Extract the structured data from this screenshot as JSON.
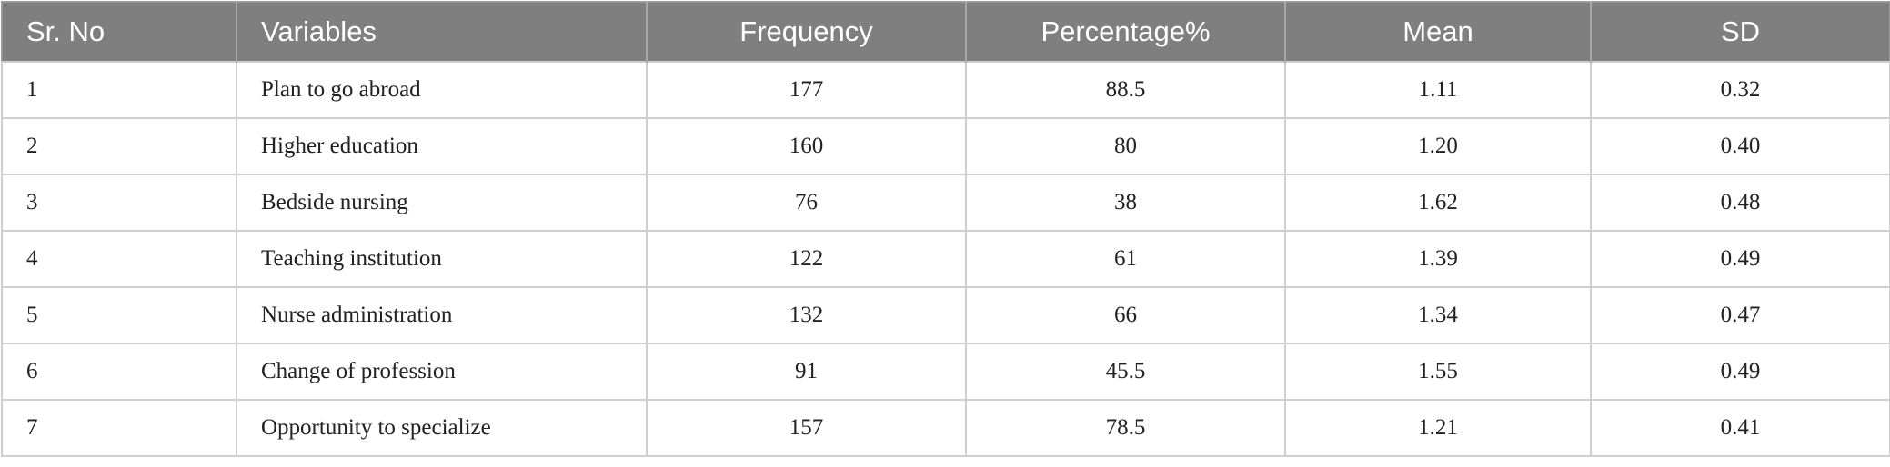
{
  "table": {
    "header": [
      "Sr. No",
      "Variables",
      "Frequency",
      "Percentage%",
      "Mean",
      "SD"
    ],
    "rows": [
      [
        "1",
        "Plan to go abroad",
        "177",
        "88.5",
        "1.11",
        "0.32"
      ],
      [
        "2",
        "Higher education",
        "160",
        "80",
        "1.20",
        "0.40"
      ],
      [
        "3",
        "Bedside nursing",
        "76",
        "38",
        "1.62",
        "0.48"
      ],
      [
        "4",
        "Teaching institution",
        "122",
        "61",
        "1.39",
        "0.49"
      ],
      [
        "5",
        "Nurse administration",
        "132",
        "66",
        "1.34",
        "0.47"
      ],
      [
        "6",
        "Change of profession",
        "91",
        "45.5",
        "1.55",
        "0.49"
      ],
      [
        "7",
        "Opportunity to specialize",
        "157",
        "78.5",
        "1.21",
        "0.41"
      ]
    ]
  }
}
